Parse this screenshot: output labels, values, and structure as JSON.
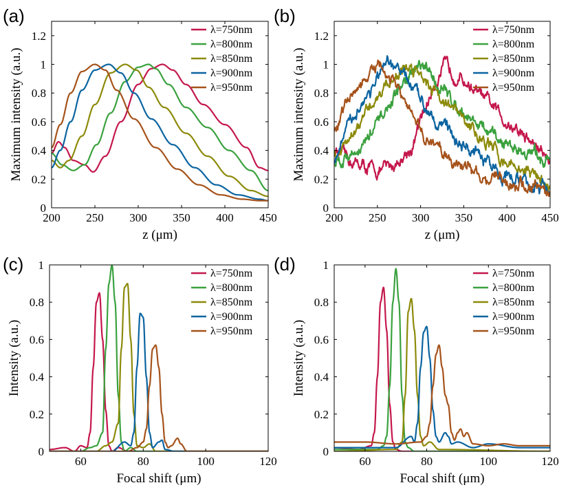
{
  "colors": {
    "750": "#c4174c",
    "800": "#3aa13e",
    "850": "#8c8a0a",
    "900": "#0b64a0",
    "950": "#a5521a"
  },
  "chart_data": [
    {
      "panel": "(a)",
      "type": "line",
      "xlabel": "z (μm)",
      "ylabel": "Maximum intensity (a.u.)",
      "xlim": [
        200,
        450
      ],
      "ylim": [
        0,
        1.3
      ],
      "xticks": [
        200,
        250,
        300,
        350,
        400,
        450
      ],
      "yticks": [
        0,
        0.2,
        0.4,
        0.6,
        0.8,
        1,
        1.2
      ],
      "legend_position": "top-right",
      "noisy": false,
      "series": [
        {
          "name": "λ=750nm",
          "key": "750",
          "x": [
            200,
            208,
            215,
            225,
            238,
            248,
            262,
            280,
            300,
            315,
            328,
            340,
            355,
            375,
            400,
            425,
            440,
            450
          ],
          "y": [
            0.38,
            0.46,
            0.42,
            0.33,
            0.3,
            0.25,
            0.36,
            0.6,
            0.86,
            0.97,
            1.0,
            0.96,
            0.86,
            0.72,
            0.58,
            0.42,
            0.28,
            0.26
          ]
        },
        {
          "name": "λ=800nm",
          "key": "800",
          "x": [
            200,
            212,
            225,
            238,
            252,
            268,
            285,
            300,
            312,
            320,
            335,
            355,
            380,
            405,
            430,
            450
          ],
          "y": [
            0.38,
            0.3,
            0.26,
            0.3,
            0.44,
            0.66,
            0.88,
            0.98,
            1.0,
            0.97,
            0.86,
            0.7,
            0.56,
            0.4,
            0.26,
            0.12
          ]
        },
        {
          "name": "λ=850nm",
          "key": "850",
          "x": [
            200,
            210,
            220,
            235,
            250,
            268,
            285,
            298,
            312,
            330,
            355,
            380,
            405,
            430,
            450
          ],
          "y": [
            0.33,
            0.28,
            0.33,
            0.5,
            0.72,
            0.94,
            1.0,
            0.96,
            0.84,
            0.7,
            0.52,
            0.36,
            0.22,
            0.12,
            0.08
          ]
        },
        {
          "name": "λ=900nm",
          "key": "900",
          "x": [
            200,
            210,
            222,
            235,
            250,
            266,
            280,
            295,
            315,
            340,
            365,
            390,
            415,
            440,
            450
          ],
          "y": [
            0.28,
            0.4,
            0.6,
            0.82,
            0.96,
            1.0,
            0.94,
            0.8,
            0.62,
            0.44,
            0.28,
            0.16,
            0.09,
            0.06,
            0.05
          ]
        },
        {
          "name": "λ=950nm",
          "key": "950",
          "x": [
            200,
            210,
            222,
            235,
            250,
            262,
            275,
            295,
            320,
            345,
            370,
            395,
            420,
            440,
            450
          ],
          "y": [
            0.42,
            0.58,
            0.8,
            0.95,
            1.0,
            0.96,
            0.82,
            0.62,
            0.42,
            0.27,
            0.16,
            0.09,
            0.06,
            0.05,
            0.05
          ]
        }
      ]
    },
    {
      "panel": "(b)",
      "type": "line",
      "xlabel": "z (μm)",
      "ylabel": "Maximum intensity (a.u.)",
      "xlim": [
        200,
        450
      ],
      "ylim": [
        0,
        1.3
      ],
      "xticks": [
        200,
        250,
        300,
        350,
        400,
        450
      ],
      "yticks": [
        0,
        0.2,
        0.4,
        0.6,
        0.8,
        1,
        1.2
      ],
      "legend_position": "top-right",
      "noisy": true,
      "series": [
        {
          "name": "λ=750nm",
          "key": "750",
          "x": [
            200,
            215,
            230,
            250,
            270,
            290,
            305,
            318,
            328,
            340,
            360,
            380,
            400,
            420,
            440,
            450
          ],
          "y": [
            0.4,
            0.34,
            0.3,
            0.25,
            0.3,
            0.42,
            0.68,
            0.9,
            0.98,
            0.94,
            0.84,
            0.72,
            0.6,
            0.5,
            0.4,
            0.32
          ]
        },
        {
          "name": "λ=800nm",
          "key": "800",
          "x": [
            200,
            215,
            235,
            255,
            275,
            290,
            300,
            315,
            335,
            360,
            385,
            410,
            435,
            450
          ],
          "y": [
            0.32,
            0.36,
            0.45,
            0.62,
            0.82,
            0.95,
            0.98,
            0.9,
            0.76,
            0.62,
            0.48,
            0.42,
            0.36,
            0.33
          ]
        },
        {
          "name": "λ=850nm",
          "key": "850",
          "x": [
            200,
            210,
            225,
            245,
            265,
            285,
            300,
            320,
            345,
            370,
            395,
            420,
            440,
            450
          ],
          "y": [
            0.38,
            0.4,
            0.52,
            0.74,
            0.9,
            0.98,
            0.96,
            0.8,
            0.64,
            0.48,
            0.34,
            0.26,
            0.2,
            0.16
          ]
        },
        {
          "name": "λ=900nm",
          "key": "900",
          "x": [
            200,
            212,
            228,
            248,
            262,
            275,
            295,
            320,
            345,
            370,
            395,
            420,
            440,
            450
          ],
          "y": [
            0.32,
            0.5,
            0.7,
            0.88,
            0.98,
            0.96,
            0.8,
            0.62,
            0.46,
            0.34,
            0.24,
            0.18,
            0.13,
            0.12
          ]
        },
        {
          "name": "λ=950nm",
          "key": "950",
          "x": [
            200,
            212,
            225,
            240,
            250,
            260,
            275,
            290,
            310,
            335,
            360,
            385,
            410,
            435,
            450
          ],
          "y": [
            0.5,
            0.7,
            0.82,
            0.92,
            0.98,
            0.92,
            0.82,
            0.62,
            0.46,
            0.34,
            0.26,
            0.2,
            0.16,
            0.14,
            0.13
          ]
        }
      ]
    },
    {
      "panel": "(c)",
      "type": "line",
      "xlabel": "Focal shift (μm)",
      "ylabel": "Intensity (a.u.)",
      "xlim": [
        50,
        120
      ],
      "ylim": [
        0,
        1
      ],
      "xticks": [
        60,
        80,
        100,
        120
      ],
      "yticks": [
        0,
        0.2,
        0.4,
        0.6,
        0.8,
        1
      ],
      "legend_position": "top-right",
      "noisy": false,
      "series": [
        {
          "name": "λ=750nm",
          "key": "750",
          "x": [
            50,
            55,
            58,
            60,
            62,
            63,
            64,
            65,
            66,
            67,
            68,
            69,
            70,
            72,
            75,
            120
          ],
          "y": [
            0.01,
            0.02,
            0.0,
            0.03,
            0.02,
            0.1,
            0.45,
            0.8,
            0.85,
            0.6,
            0.22,
            0.03,
            0.0,
            0.02,
            0.0,
            0.0
          ]
        },
        {
          "name": "λ=800nm",
          "key": "800",
          "x": [
            50,
            60,
            63,
            65,
            67,
            68,
            69,
            70,
            71,
            72,
            73,
            74,
            76,
            78,
            120
          ],
          "y": [
            0.0,
            0.0,
            0.02,
            0.03,
            0.1,
            0.55,
            0.9,
            1.0,
            0.8,
            0.3,
            0.05,
            0.0,
            0.02,
            0.0,
            0.0
          ]
        },
        {
          "name": "λ=850nm",
          "key": "850",
          "x": [
            50,
            65,
            68,
            70,
            72,
            73,
            74,
            75,
            76,
            77,
            78,
            80,
            82,
            84,
            120
          ],
          "y": [
            0.0,
            0.0,
            0.03,
            0.05,
            0.15,
            0.55,
            0.88,
            0.9,
            0.6,
            0.2,
            0.03,
            0.02,
            0.04,
            0.0,
            0.0
          ]
        },
        {
          "name": "λ=900nm",
          "key": "900",
          "x": [
            50,
            70,
            74,
            76,
            77,
            78,
            79,
            80,
            81,
            82,
            83,
            85,
            86,
            87,
            90,
            120
          ],
          "y": [
            0.0,
            0.0,
            0.05,
            0.03,
            0.1,
            0.45,
            0.74,
            0.72,
            0.4,
            0.1,
            0.02,
            0.05,
            0.06,
            0.01,
            0.0,
            0.0
          ]
        },
        {
          "name": "λ=950nm",
          "key": "950",
          "x": [
            50,
            75,
            78,
            80,
            81,
            82,
            83,
            84,
            85,
            86,
            87,
            88,
            89,
            91,
            92,
            94,
            120
          ],
          "y": [
            0.0,
            0.0,
            0.02,
            0.05,
            0.12,
            0.35,
            0.55,
            0.57,
            0.45,
            0.2,
            0.05,
            0.02,
            0.03,
            0.07,
            0.04,
            0.0,
            0.0
          ]
        }
      ]
    },
    {
      "panel": "(d)",
      "type": "line",
      "xlabel": "Focal shift (μm)",
      "ylabel": "Intensity (a.u.)",
      "xlim": [
        50,
        120
      ],
      "ylim": [
        0,
        1
      ],
      "xticks": [
        60,
        80,
        100,
        120
      ],
      "yticks": [
        0,
        0.2,
        0.4,
        0.6,
        0.8,
        1
      ],
      "legend_position": "top-right",
      "noisy": false,
      "series": [
        {
          "name": "λ=750nm",
          "key": "750",
          "x": [
            50,
            58,
            62,
            63,
            64,
            65,
            66,
            67,
            68,
            69,
            70,
            72,
            120
          ],
          "y": [
            0.02,
            0.01,
            0.03,
            0.1,
            0.4,
            0.8,
            0.88,
            0.65,
            0.25,
            0.05,
            0.01,
            0.0,
            0.0
          ]
        },
        {
          "name": "λ=800nm",
          "key": "800",
          "x": [
            50,
            64,
            66,
            67,
            68,
            69,
            70,
            71,
            72,
            73,
            74,
            76,
            120
          ],
          "y": [
            0.01,
            0.01,
            0.03,
            0.08,
            0.35,
            0.8,
            0.98,
            0.8,
            0.3,
            0.05,
            0.02,
            0.0,
            0.0
          ]
        },
        {
          "name": "λ=850nm",
          "key": "850",
          "x": [
            50,
            70,
            72,
            73,
            74,
            75,
            76,
            77,
            78,
            79,
            81,
            84,
            120
          ],
          "y": [
            0.0,
            0.01,
            0.05,
            0.3,
            0.75,
            0.82,
            0.65,
            0.3,
            0.08,
            0.03,
            0.05,
            0.01,
            0.0
          ]
        },
        {
          "name": "λ=900nm",
          "key": "900",
          "x": [
            50,
            70,
            75,
            76,
            77,
            78,
            79,
            80,
            81,
            82,
            83,
            84,
            86,
            87,
            88,
            90,
            95,
            100,
            110,
            120
          ],
          "y": [
            0.02,
            0.02,
            0.08,
            0.05,
            0.15,
            0.45,
            0.64,
            0.67,
            0.5,
            0.22,
            0.08,
            0.05,
            0.1,
            0.08,
            0.04,
            0.05,
            0.02,
            0.04,
            0.02,
            0.02
          ]
        },
        {
          "name": "λ=950nm",
          "key": "950",
          "x": [
            50,
            55,
            60,
            70,
            78,
            80,
            81,
            82,
            83,
            84,
            85,
            86,
            87,
            88,
            89,
            90,
            91,
            92,
            93,
            95,
            100,
            105,
            110,
            120
          ],
          "y": [
            0.05,
            0.05,
            0.05,
            0.04,
            0.05,
            0.08,
            0.15,
            0.35,
            0.52,
            0.57,
            0.45,
            0.3,
            0.25,
            0.1,
            0.06,
            0.1,
            0.12,
            0.08,
            0.1,
            0.04,
            0.03,
            0.04,
            0.03,
            0.03
          ]
        }
      ]
    }
  ]
}
